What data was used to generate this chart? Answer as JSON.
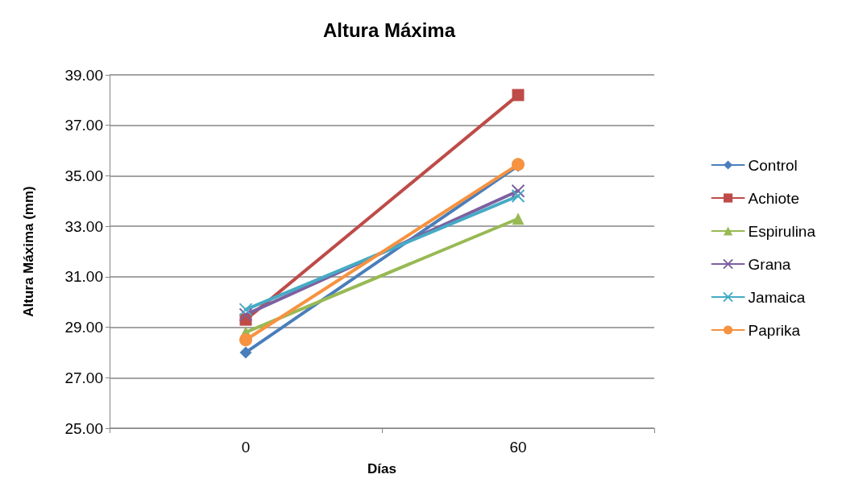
{
  "chart_data": {
    "type": "line",
    "title": "Altura Máxima",
    "xlabel": "Días",
    "ylabel": "Altura Máxima (mm)",
    "categories": [
      "0",
      "60"
    ],
    "series": [
      {
        "name": "Control",
        "color": "#4a7ebb",
        "values": [
          28.0,
          35.4
        ],
        "marker": "diamond"
      },
      {
        "name": "Achiote",
        "color": "#be4b48",
        "values": [
          29.3,
          38.2
        ],
        "marker": "square"
      },
      {
        "name": "Espirulina",
        "color": "#98b954",
        "values": [
          28.8,
          33.3
        ],
        "marker": "triangle"
      },
      {
        "name": "Grana",
        "color": "#7d60a0",
        "values": [
          29.5,
          34.4
        ],
        "marker": "cross"
      },
      {
        "name": "Jamaica",
        "color": "#46aac5",
        "values": [
          29.7,
          34.2
        ],
        "marker": "cross"
      },
      {
        "name": "Paprika",
        "color": "#f69240",
        "values": [
          28.5,
          35.45
        ],
        "marker": "circle"
      }
    ],
    "ylim": [
      25,
      39
    ],
    "yticks": [
      {
        "value": 25,
        "label": "25.00"
      },
      {
        "value": 27,
        "label": "27.00"
      },
      {
        "value": 29,
        "label": "29.00"
      },
      {
        "value": 31,
        "label": "31.00"
      },
      {
        "value": 33,
        "label": "33.00"
      },
      {
        "value": 35,
        "label": "35.00"
      },
      {
        "value": 37,
        "label": "37.00"
      },
      {
        "value": 39,
        "label": "39.00"
      }
    ],
    "grid": "y",
    "legend": "right",
    "line_style": "solid"
  }
}
